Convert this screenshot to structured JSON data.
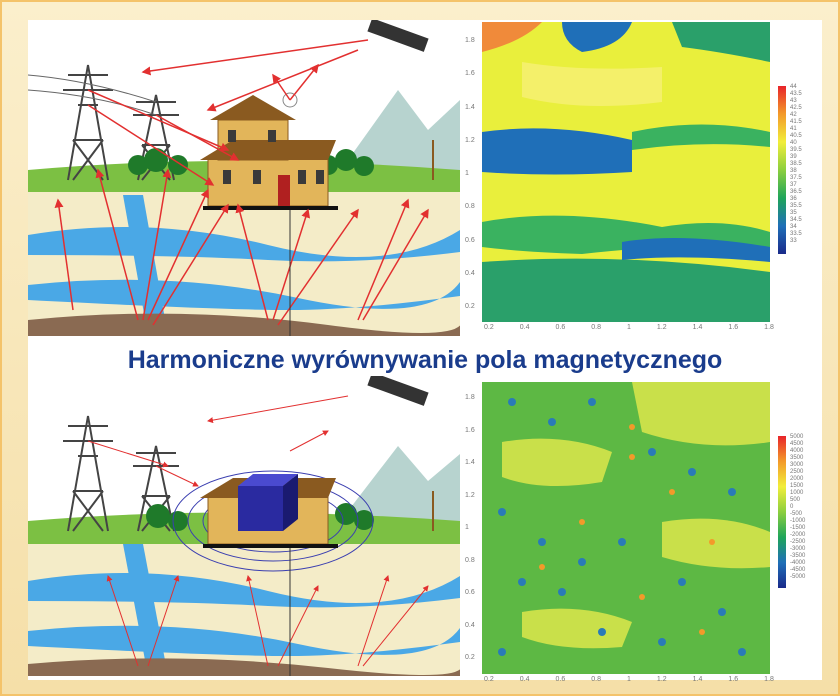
{
  "caption": "Harmoniczne wyrównywanie pola magnetycznego",
  "map1": {
    "y_ticks": [
      "1.8",
      "1.6",
      "1.4",
      "1.2",
      "1",
      "0.8",
      "0.6",
      "0.4",
      "0.2"
    ],
    "x_ticks": [
      "0.2",
      "0.4",
      "0.6",
      "0.8",
      "1",
      "1.2",
      "1.4",
      "1.6",
      "1.8"
    ],
    "legend": [
      "44",
      "43.5",
      "43",
      "42.5",
      "42",
      "41.5",
      "41",
      "40.5",
      "40",
      "39.5",
      "39",
      "38.5",
      "38",
      "37.5",
      "37",
      "36.5",
      "36",
      "35.5",
      "35",
      "34.5",
      "34",
      "33.5",
      "33"
    ]
  },
  "map2": {
    "y_ticks": [
      "1.8",
      "1.6",
      "1.4",
      "1.2",
      "1",
      "0.8",
      "0.6",
      "0.4",
      "0.2"
    ],
    "x_ticks": [
      "0.2",
      "0.4",
      "0.6",
      "0.8",
      "1",
      "1.2",
      "1.4",
      "1.6",
      "1.8"
    ],
    "legend": [
      "5000",
      "4500",
      "4000",
      "3500",
      "3000",
      "2500",
      "2000",
      "1500",
      "1000",
      "500",
      "0",
      "-500",
      "-1000",
      "-1500",
      "-2000",
      "-2500",
      "-3000",
      "-3500",
      "-4000",
      "-4500",
      "-5000"
    ]
  },
  "colors": {
    "caption": "#1a3c8c",
    "water": "#4aa8e6",
    "arrow": "#e23030",
    "house": "#e2b55a",
    "tower": "#444444"
  }
}
